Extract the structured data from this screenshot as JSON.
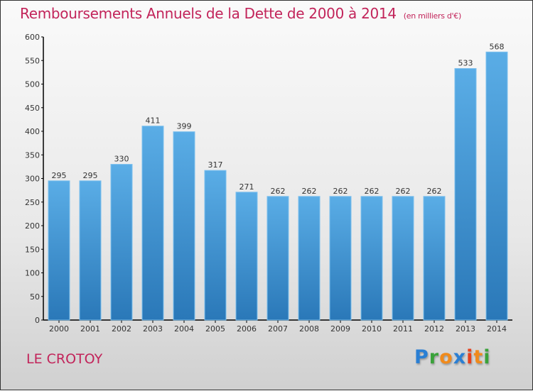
{
  "title": "Remboursements Annuels de la Dette de 2000 à 2014",
  "subtitle": "(en milliers d'€)",
  "city": "LE CROTOY",
  "logo": {
    "letters": [
      {
        "c": "P",
        "color": "#2a7fd4"
      },
      {
        "c": "r",
        "color": "#3aa23a"
      },
      {
        "c": "o",
        "color": "#f08a1c"
      },
      {
        "c": "x",
        "color": "#2a7fd4"
      },
      {
        "c": "i",
        "color": "#e8401c"
      },
      {
        "c": "t",
        "color": "#f08a1c"
      },
      {
        "c": "i",
        "color": "#3aa23a"
      }
    ]
  },
  "chart_data": {
    "type": "bar",
    "title": "Remboursements Annuels de la Dette de 2000 à 2014",
    "subtitle": "(en milliers d'€)",
    "xlabel": "",
    "ylabel": "",
    "categories": [
      "2000",
      "2001",
      "2002",
      "2003",
      "2004",
      "2005",
      "2006",
      "2007",
      "2008",
      "2009",
      "2010",
      "2011",
      "2012",
      "2013",
      "2014"
    ],
    "values": [
      295,
      295,
      330,
      411,
      399,
      317,
      271,
      262,
      262,
      262,
      262,
      262,
      262,
      533,
      568
    ],
    "ylim": [
      0,
      600
    ],
    "yticks": [
      0,
      50,
      100,
      150,
      200,
      250,
      300,
      350,
      400,
      450,
      500,
      550,
      600
    ],
    "grid": false,
    "bar_color_top": "#5aade6",
    "bar_color_bottom": "#2a78b8"
  }
}
